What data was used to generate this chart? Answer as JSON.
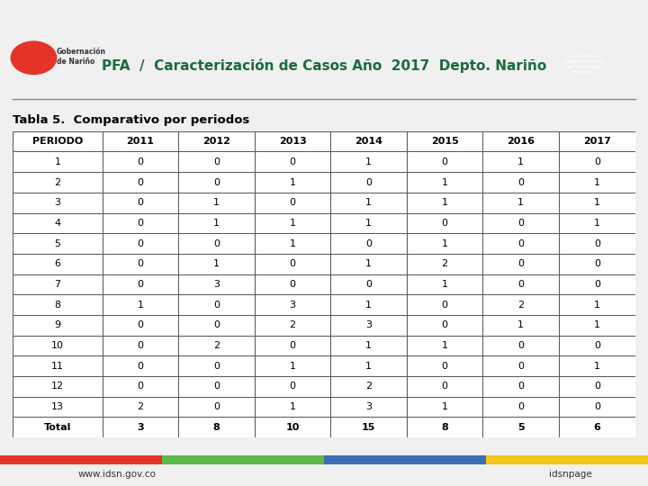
{
  "title": "PFA  /  Caracterización de Casos Año  2017  Depto. Nariño",
  "subtitle": "Tabla 5.  Comparativo por periodos",
  "columns": [
    "PERIODO",
    "2011",
    "2012",
    "2013",
    "2014",
    "2015",
    "2016",
    "2017"
  ],
  "rows": [
    [
      "1",
      "0",
      "0",
      "0",
      "1",
      "0",
      "1",
      "0"
    ],
    [
      "2",
      "0",
      "0",
      "1",
      "0",
      "1",
      "0",
      "1"
    ],
    [
      "3",
      "0",
      "1",
      "0",
      "1",
      "1",
      "1",
      "1"
    ],
    [
      "4",
      "0",
      "1",
      "1",
      "1",
      "0",
      "0",
      "1"
    ],
    [
      "5",
      "0",
      "0",
      "1",
      "0",
      "1",
      "0",
      "0"
    ],
    [
      "6",
      "0",
      "1",
      "0",
      "1",
      "2",
      "0",
      "0"
    ],
    [
      "7",
      "0",
      "3",
      "0",
      "0",
      "1",
      "0",
      "0"
    ],
    [
      "8",
      "1",
      "0",
      "3",
      "1",
      "0",
      "2",
      "1"
    ],
    [
      "9",
      "0",
      "0",
      "2",
      "3",
      "0",
      "1",
      "1"
    ],
    [
      "10",
      "0",
      "2",
      "0",
      "1",
      "1",
      "0",
      "0"
    ],
    [
      "11",
      "0",
      "0",
      "1",
      "1",
      "0",
      "0",
      "1"
    ],
    [
      "12",
      "0",
      "0",
      "0",
      "2",
      "0",
      "0",
      "0"
    ],
    [
      "13",
      "2",
      "0",
      "1",
      "3",
      "1",
      "0",
      "0"
    ],
    [
      "Total",
      "3",
      "8",
      "10",
      "15",
      "8",
      "5",
      "6"
    ]
  ],
  "header_bg": "#ffffff",
  "row_bg_odd": "#ffffff",
  "row_bg_even": "#ffffff",
  "header_text_color": "#000000",
  "cell_text_color": "#000000",
  "border_color": "#555555",
  "bg_color": "#f0f0f0",
  "top_bar_color": "#f5c518",
  "title_color": "#1a6b3c",
  "subtitle_color": "#000000",
  "bottom_bar_colors": [
    "#e63329",
    "#5bba47",
    "#3b6fb5",
    "#f5c518"
  ],
  "footer_website": "www.idsn.gov.co",
  "footer_page": "idsnpage"
}
